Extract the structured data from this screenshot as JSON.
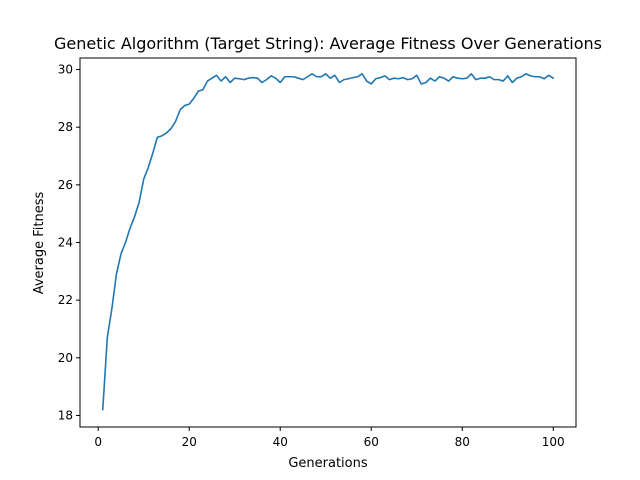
{
  "chart_data": {
    "type": "line",
    "title": "Genetic Algorithm (Target String): Average Fitness Over Generations",
    "xlabel": "Generations",
    "ylabel": "Average Fitness",
    "xlim": [
      -4,
      105
    ],
    "ylim": [
      17.6,
      30.4
    ],
    "xticks": [
      0,
      20,
      40,
      60,
      80,
      100
    ],
    "yticks": [
      18,
      20,
      22,
      24,
      26,
      28,
      30
    ],
    "grid": false,
    "series": [
      {
        "color": "#1f77b4",
        "x": [
          1,
          2,
          3,
          4,
          5,
          6,
          7,
          8,
          9,
          10,
          11,
          12,
          13,
          14,
          15,
          16,
          17,
          18,
          19,
          20,
          21,
          22,
          23,
          24,
          25,
          26,
          27,
          28,
          29,
          30,
          31,
          32,
          33,
          34,
          35,
          36,
          37,
          38,
          39,
          40,
          41,
          42,
          43,
          44,
          45,
          46,
          47,
          48,
          49,
          50,
          51,
          52,
          53,
          54,
          55,
          56,
          57,
          58,
          59,
          60,
          61,
          62,
          63,
          64,
          65,
          66,
          67,
          68,
          69,
          70,
          71,
          72,
          73,
          74,
          75,
          76,
          77,
          78,
          79,
          80,
          81,
          82,
          83,
          84,
          85,
          86,
          87,
          88,
          89,
          90,
          91,
          92,
          93,
          94,
          95,
          96,
          97,
          98,
          99,
          100
        ],
        "values": [
          18.2,
          20.7,
          21.7,
          22.9,
          23.6,
          24.0,
          24.5,
          24.9,
          25.4,
          26.2,
          26.6,
          27.1,
          27.65,
          27.7,
          27.8,
          27.95,
          28.2,
          28.6,
          28.75,
          28.8,
          29.0,
          29.25,
          29.3,
          29.6,
          29.7,
          29.8,
          29.6,
          29.75,
          29.55,
          29.7,
          29.68,
          29.65,
          29.7,
          29.72,
          29.7,
          29.55,
          29.65,
          29.78,
          29.7,
          29.55,
          29.75,
          29.75,
          29.75,
          29.7,
          29.65,
          29.75,
          29.85,
          29.75,
          29.75,
          29.85,
          29.7,
          29.8,
          29.55,
          29.65,
          29.68,
          29.72,
          29.75,
          29.85,
          29.6,
          29.5,
          29.68,
          29.72,
          29.78,
          29.65,
          29.7,
          29.68,
          29.72,
          29.65,
          29.68,
          29.8,
          29.5,
          29.55,
          29.7,
          29.6,
          29.75,
          29.7,
          29.6,
          29.75,
          29.7,
          29.68,
          29.7,
          29.85,
          29.65,
          29.7,
          29.7,
          29.75,
          29.65,
          29.65,
          29.6,
          29.78,
          29.55,
          29.7,
          29.75,
          29.85,
          29.78,
          29.75,
          29.75,
          29.68,
          29.8,
          29.7
        ]
      }
    ]
  }
}
